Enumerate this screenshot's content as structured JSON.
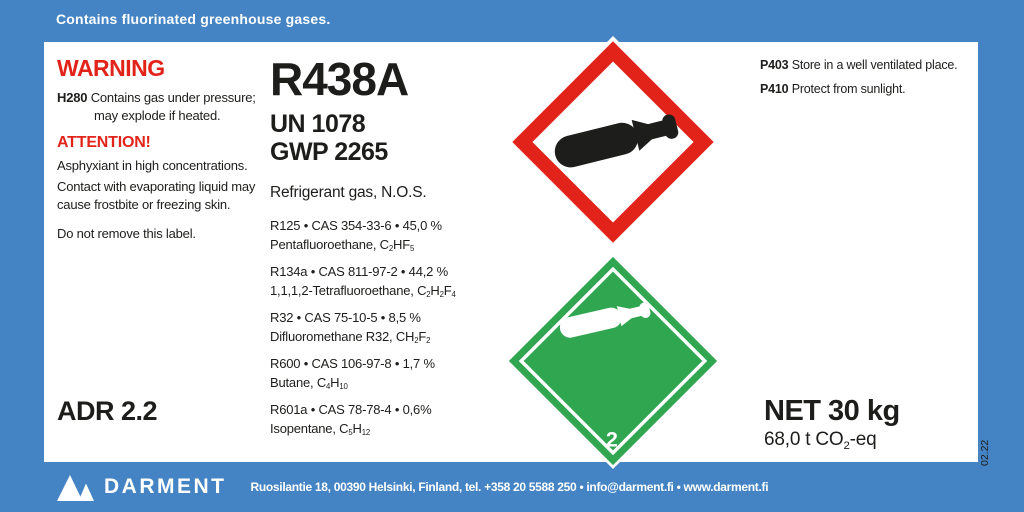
{
  "colors": {
    "blue": "#4484c4",
    "red": "#e2231a",
    "green": "#2fa64f",
    "ink": "#1d1d1b"
  },
  "top_bar": {
    "notice": "Contains fluorinated greenhouse gases."
  },
  "left_column": {
    "warning_title": "WARNING",
    "h280_code": "H280",
    "h280_text": "Contains gas under pressure; may explode if heated.",
    "attention_title": "ATTENTION!",
    "asphyxiant_text": "Asphyxiant in high concentrations.",
    "contact_text": "Contact with evaporating liquid may cause frostbite or freezing skin.",
    "do_not_remove_text": "Do not remove this label.",
    "adr_class": "ADR 2.2"
  },
  "product": {
    "name": "R438A",
    "un_number": "UN 1078",
    "gwp": "GWP 2265",
    "description": "Refrigerant gas, N.O.S.",
    "components": [
      {
        "line": "R125 • CAS 354-33-6 • 45,0 %",
        "formula": "Pentafluoroethane, C~2~HF~5~"
      },
      {
        "line": "R134a • CAS 811-97-2 • 44,2 %",
        "formula": "1,1,1,2-Tetrafluoroethane, C~2~H~2~F~4~"
      },
      {
        "line": "R32 • CAS 75-10-5 • 8,5 %",
        "formula": "Difluoromethane R32, CH~2~F~2~"
      },
      {
        "line": "R600 • CAS 106-97-8 • 1,7 %",
        "formula": "Butane, C~4~H~10~"
      },
      {
        "line": "R601a • CAS 78-78-4 • 0,6%",
        "formula": "Isopentane, C~5~H~12~"
      }
    ]
  },
  "pictograms": {
    "ghs04_name": "gas-cylinder-pictogram",
    "adr_name": "non-flammable-gas-2.2-pictogram",
    "class_number": "2"
  },
  "right_column": {
    "p403_code": "P403",
    "p403_text": "Store in a well ventilated place.",
    "p410_code": "P410",
    "p410_text": "Protect from sunlight.",
    "net_weight": "NET 30 kg",
    "co2_eq": "68,0 t CO~2~-eq"
  },
  "side_note": "02.22",
  "footer": {
    "brand": "DARMENT",
    "contact": "Ruosilantie 18, 00390 Helsinki, Finland, tel. +358 20 5588 250 • info@darment.fi • www.darment.fi"
  }
}
